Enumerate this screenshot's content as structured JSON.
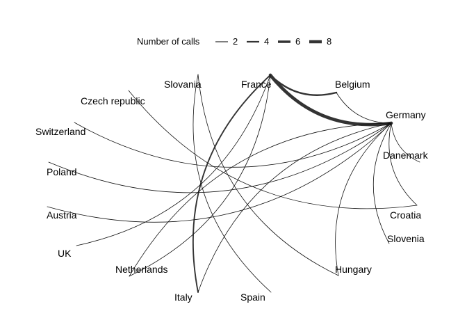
{
  "legend": {
    "title": "Number of calls",
    "entries": [
      {
        "label": "2",
        "weight": 2
      },
      {
        "label": "4",
        "weight": 4
      },
      {
        "label": "6",
        "weight": 6
      },
      {
        "label": "8",
        "weight": 8
      }
    ]
  },
  "nodes": [
    {
      "id": "france",
      "label": "France"
    },
    {
      "id": "belgium",
      "label": "Belgium"
    },
    {
      "id": "germany",
      "label": "Germany"
    },
    {
      "id": "danemark",
      "label": "Danemark"
    },
    {
      "id": "croatia",
      "label": "Croatia"
    },
    {
      "id": "slovenia",
      "label": "Slovenia"
    },
    {
      "id": "hungary",
      "label": "Hungary"
    },
    {
      "id": "spain",
      "label": "Spain"
    },
    {
      "id": "italy",
      "label": "Italy"
    },
    {
      "id": "netherlands",
      "label": "Netherlands"
    },
    {
      "id": "uk",
      "label": "UK"
    },
    {
      "id": "austria",
      "label": "Austria"
    },
    {
      "id": "poland",
      "label": "Poland"
    },
    {
      "id": "switzerland",
      "label": "Switzerland"
    },
    {
      "id": "czech",
      "label": "Czech republic"
    },
    {
      "id": "slovania",
      "label": "Slovania"
    }
  ],
  "edges": [
    {
      "from": "france",
      "to": "germany",
      "weight": 8
    },
    {
      "from": "france",
      "to": "belgium",
      "weight": 4
    },
    {
      "from": "france",
      "to": "italy",
      "weight": 3
    },
    {
      "from": "france",
      "to": "netherlands",
      "weight": 1
    },
    {
      "from": "france",
      "to": "uk",
      "weight": 1
    },
    {
      "from": "belgium",
      "to": "germany",
      "weight": 1
    },
    {
      "from": "germany",
      "to": "danemark",
      "weight": 1
    },
    {
      "from": "germany",
      "to": "croatia",
      "weight": 1
    },
    {
      "from": "germany",
      "to": "slovenia",
      "weight": 1
    },
    {
      "from": "germany",
      "to": "hungary",
      "weight": 1
    },
    {
      "from": "germany",
      "to": "italy",
      "weight": 1
    },
    {
      "from": "germany",
      "to": "netherlands",
      "weight": 1
    },
    {
      "from": "germany",
      "to": "austria",
      "weight": 1
    },
    {
      "from": "germany",
      "to": "poland",
      "weight": 1
    },
    {
      "from": "germany",
      "to": "switzerland",
      "weight": 1
    },
    {
      "from": "slovania",
      "to": "spain",
      "weight": 1
    },
    {
      "from": "slovania",
      "to": "hungary",
      "weight": 1
    },
    {
      "from": "czech",
      "to": "croatia",
      "weight": 1
    }
  ]
}
